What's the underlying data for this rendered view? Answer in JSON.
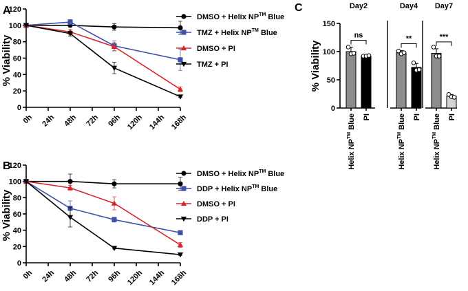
{
  "figure": {
    "panels": [
      "A",
      "B",
      "C"
    ]
  },
  "chart_data": [
    {
      "panel": "A",
      "type": "line",
      "title": "",
      "xlabel": "",
      "ylabel": "% Viability",
      "ylim": [
        0,
        120
      ],
      "yticks": [
        "0",
        "20",
        "40",
        "60",
        "80",
        "100",
        "120"
      ],
      "x": [
        "0h",
        "24h",
        "48h",
        "72h",
        "96h",
        "120h",
        "144h",
        "168h"
      ],
      "series": [
        {
          "name": "DMSO + Helix NP",
          "sup": "TM",
          "suffix": " Blue",
          "color": "#000000",
          "marker": "circle",
          "points": [
            [
              0,
              100
            ],
            [
              48,
              100
            ],
            [
              96,
              98
            ],
            [
              168,
              97
            ]
          ],
          "errors": [
            0,
            2,
            4,
            8
          ]
        },
        {
          "name": "TMZ + Helix NP",
          "sup": "TM",
          "suffix": " Blue",
          "color": "#3f51a8",
          "marker": "square",
          "points": [
            [
              0,
              100
            ],
            [
              48,
              104
            ],
            [
              96,
              75
            ],
            [
              168,
              58
            ]
          ],
          "errors": [
            0,
            3,
            6,
            13
          ]
        },
        {
          "name": "DMSO + PI",
          "sup": "",
          "suffix": "",
          "color": "#d7252c",
          "marker": "triangle",
          "points": [
            [
              0,
              100
            ],
            [
              48,
              92
            ],
            [
              96,
              74
            ],
            [
              168,
              22
            ]
          ],
          "errors": [
            0,
            3,
            5,
            3
          ]
        },
        {
          "name": "TMZ + PI",
          "sup": "",
          "suffix": "",
          "color": "#000000",
          "marker": "triangle-down",
          "points": [
            [
              0,
              100
            ],
            [
              48,
              90
            ],
            [
              96,
              48
            ],
            [
              168,
              13
            ]
          ],
          "errors": [
            0,
            3,
            7,
            1
          ]
        }
      ]
    },
    {
      "panel": "B",
      "type": "line",
      "title": "",
      "xlabel": "",
      "ylabel": "% Viability",
      "ylim": [
        0,
        120
      ],
      "yticks": [
        "0",
        "20",
        "40",
        "60",
        "80",
        "100",
        "120"
      ],
      "x": [
        "0h",
        "24h",
        "48h",
        "72h",
        "96h",
        "120h",
        "144h",
        "168h"
      ],
      "series": [
        {
          "name": "DMSO + Helix NP",
          "sup": "TM",
          "suffix": " Blue",
          "color": "#000000",
          "marker": "circle",
          "points": [
            [
              0,
              100
            ],
            [
              48,
              100
            ],
            [
              96,
              97
            ],
            [
              168,
              97
            ]
          ],
          "errors": [
            0,
            9,
            5,
            8
          ]
        },
        {
          "name": "DDP + Helix NP",
          "sup": "TM",
          "suffix": " Blue",
          "color": "#3f51a8",
          "marker": "square",
          "points": [
            [
              0,
              100
            ],
            [
              48,
              67
            ],
            [
              96,
              53
            ],
            [
              168,
              37
            ]
          ],
          "errors": [
            0,
            9,
            3,
            2
          ]
        },
        {
          "name": "DMSO + PI",
          "sup": "",
          "suffix": "",
          "color": "#d7252c",
          "marker": "triangle",
          "points": [
            [
              0,
              100
            ],
            [
              48,
              92
            ],
            [
              96,
              73
            ],
            [
              168,
              22
            ]
          ],
          "errors": [
            0,
            3,
            8,
            3
          ]
        },
        {
          "name": "DDP + PI",
          "sup": "",
          "suffix": "",
          "color": "#000000",
          "marker": "triangle-down",
          "points": [
            [
              0,
              100
            ],
            [
              48,
              56
            ],
            [
              96,
              18
            ],
            [
              168,
              10
            ]
          ],
          "errors": [
            0,
            12,
            1,
            1
          ]
        }
      ]
    },
    {
      "panel": "C",
      "type": "bar",
      "title": "",
      "xlabel": "",
      "ylabel": "% Viability",
      "ylim": [
        0,
        150
      ],
      "yticks": [
        "0",
        "50",
        "100",
        "150"
      ],
      "groups": [
        {
          "name": "Day2",
          "significance": "ns",
          "bars": [
            {
              "label": "Helix NP",
              "sup": "TM",
              "suffix": " Blue",
              "value": 100,
              "error": 8,
              "color": "#8c8c8c",
              "points": [
                108,
                96,
                97
              ]
            },
            {
              "label": "PI",
              "sup": "",
              "suffix": "",
              "value": 92,
              "error": 2,
              "color": "#000000",
              "points": [
                92,
                92,
                93
              ]
            }
          ]
        },
        {
          "name": "Day4",
          "significance": "**",
          "bars": [
            {
              "label": "Helix NP",
              "sup": "TM",
              "suffix": " Blue",
              "value": 98,
              "error": 4,
              "color": "#8c8c8c",
              "points": [
                101,
                96,
                98
              ]
            },
            {
              "label": "PI",
              "sup": "",
              "suffix": "",
              "value": 72,
              "error": 7,
              "color": "#000000",
              "points": [
                80,
                67,
                68
              ]
            }
          ]
        },
        {
          "name": "Day7",
          "significance": "***",
          "bars": [
            {
              "label": "Helix NP",
              "sup": "TM",
              "suffix": " Blue",
              "value": 97,
              "error": 8,
              "color": "#8c8c8c",
              "points": [
                108,
                92,
                92
              ]
            },
            {
              "label": "PI",
              "sup": "",
              "suffix": "",
              "value": 21,
              "error": 3,
              "color": "#d3d3d3",
              "points": [
                24,
                20,
                19
              ]
            }
          ]
        }
      ]
    }
  ]
}
